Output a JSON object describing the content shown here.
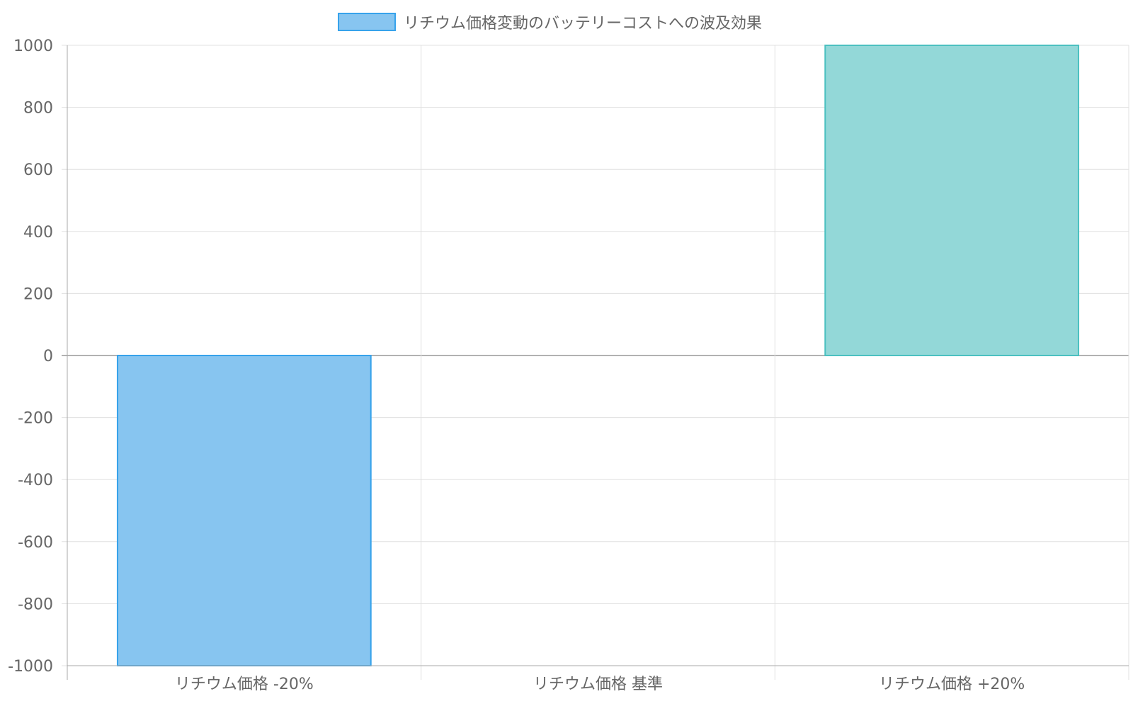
{
  "chart_data": {
    "type": "bar",
    "categories": [
      "リチウム価格 -20%",
      "リチウム価格 基準",
      "リチウム価格 +20%"
    ],
    "series": [
      {
        "name": "リチウム価格変動のバッテリーコストへの波及効果",
        "values": [
          -1000,
          0,
          1000
        ]
      }
    ],
    "ylim": [
      -1000,
      1000
    ],
    "yticks": [
      -1000,
      -800,
      -600,
      -400,
      -200,
      0,
      200,
      400,
      600,
      800,
      1000
    ],
    "grid": true,
    "legend_position": "top",
    "colors": {
      "legend_fill": "#87c5f0",
      "legend_border": "#36a2eb",
      "negative_fill": "#87c5f0",
      "negative_border": "#36a2eb",
      "positive_fill": "#93d8d8",
      "positive_border": "#4bc0c0",
      "grid": "#e0e0e0",
      "axis": "#aaaaaa",
      "text": "#666666"
    }
  }
}
